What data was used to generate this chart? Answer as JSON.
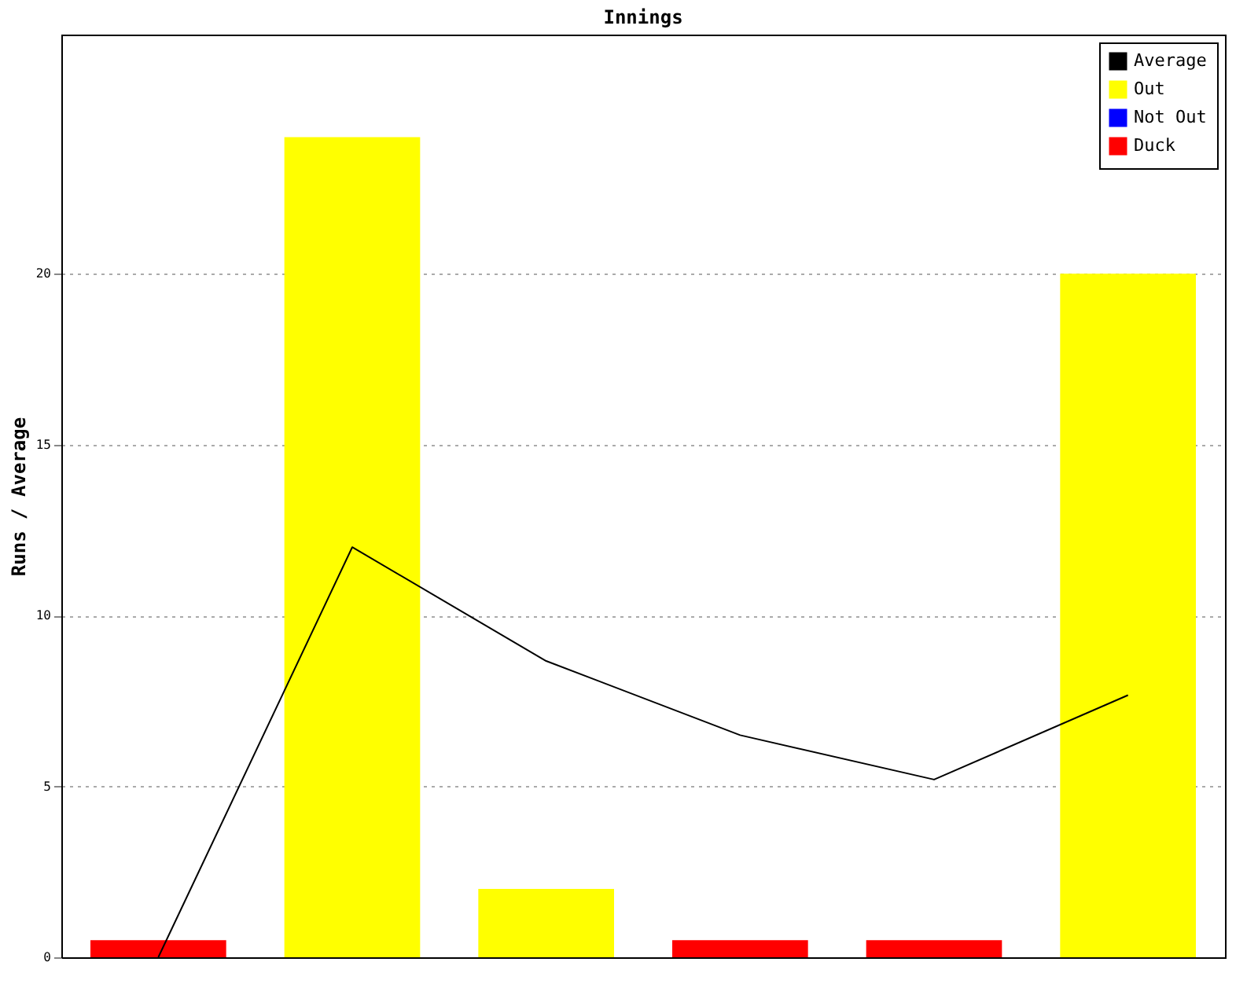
{
  "chart_data": {
    "type": "bar",
    "title": "Innings",
    "ylabel": "Runs / Average",
    "categories": [
      null,
      null,
      null,
      null,
      null,
      null
    ],
    "series": [
      {
        "name": "Average",
        "color": "#000000",
        "type": "line",
        "values": [
          0,
          12,
          8.67,
          6.5,
          5.2,
          7.67
        ]
      },
      {
        "name": "Out",
        "color": "#ffff00",
        "values": [
          null,
          24,
          2,
          null,
          null,
          20
        ]
      },
      {
        "name": "Not Out",
        "color": "#0000ff",
        "values": [
          null,
          null,
          null,
          null,
          null,
          null
        ]
      },
      {
        "name": "Duck",
        "color": "#ff0000",
        "values": [
          0.5,
          null,
          null,
          0.5,
          0.5,
          null
        ]
      }
    ],
    "ylim": [
      0,
      27
    ],
    "yticks": [
      0,
      5,
      10,
      15,
      20
    ],
    "grid": "y",
    "legend": "top right",
    "tick_labels": "y"
  }
}
